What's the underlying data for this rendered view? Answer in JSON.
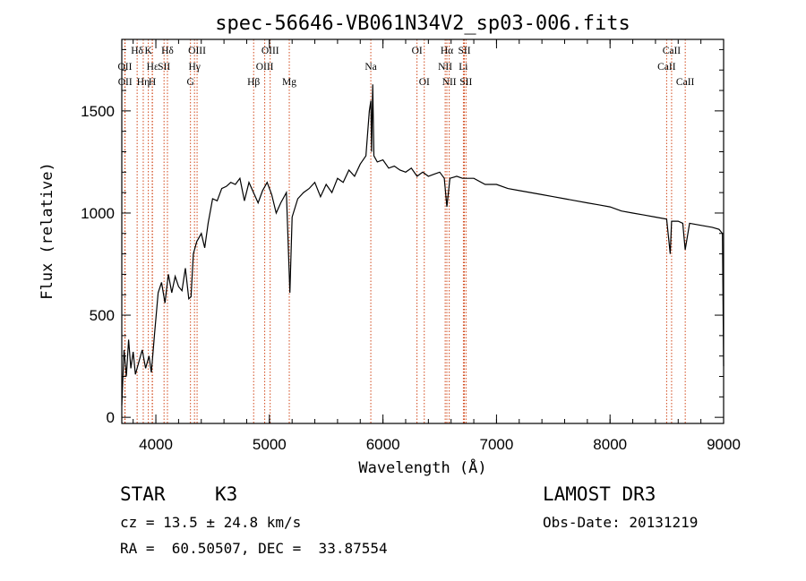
{
  "chart_data": {
    "type": "line",
    "title": "spec-56646-VB061N34V2_sp03-006.fits",
    "xlabel": "Wavelength (Å)",
    "ylabel": "Flux (relative)",
    "xlim": [
      3700,
      9000
    ],
    "ylim": [
      -30,
      1850
    ],
    "xticks": [
      4000,
      5000,
      6000,
      7000,
      8000,
      9000
    ],
    "yticks": [
      0,
      500,
      1000,
      1500
    ],
    "series": [
      {
        "name": "flux",
        "points": [
          [
            3700,
            60
          ],
          [
            3720,
            330
          ],
          [
            3740,
            200
          ],
          [
            3760,
            380
          ],
          [
            3780,
            240
          ],
          [
            3800,
            320
          ],
          [
            3820,
            210
          ],
          [
            3850,
            270
          ],
          [
            3880,
            330
          ],
          [
            3910,
            240
          ],
          [
            3940,
            300
          ],
          [
            3960,
            220
          ],
          [
            3990,
            420
          ],
          [
            4020,
            610
          ],
          [
            4050,
            660
          ],
          [
            4080,
            560
          ],
          [
            4110,
            700
          ],
          [
            4140,
            610
          ],
          [
            4170,
            690
          ],
          [
            4200,
            640
          ],
          [
            4230,
            620
          ],
          [
            4260,
            730
          ],
          [
            4290,
            580
          ],
          [
            4310,
            590
          ],
          [
            4330,
            800
          ],
          [
            4360,
            860
          ],
          [
            4400,
            900
          ],
          [
            4430,
            830
          ],
          [
            4460,
            950
          ],
          [
            4500,
            1070
          ],
          [
            4540,
            1060
          ],
          [
            4580,
            1120
          ],
          [
            4620,
            1130
          ],
          [
            4660,
            1150
          ],
          [
            4700,
            1140
          ],
          [
            4740,
            1170
          ],
          [
            4780,
            1060
          ],
          [
            4820,
            1150
          ],
          [
            4860,
            1100
          ],
          [
            4900,
            1050
          ],
          [
            4940,
            1110
          ],
          [
            4980,
            1150
          ],
          [
            5020,
            1090
          ],
          [
            5060,
            1000
          ],
          [
            5100,
            1050
          ],
          [
            5150,
            1100
          ],
          [
            5180,
            610
          ],
          [
            5200,
            980
          ],
          [
            5250,
            1070
          ],
          [
            5300,
            1100
          ],
          [
            5350,
            1120
          ],
          [
            5400,
            1150
          ],
          [
            5450,
            1080
          ],
          [
            5500,
            1140
          ],
          [
            5550,
            1100
          ],
          [
            5600,
            1170
          ],
          [
            5650,
            1150
          ],
          [
            5700,
            1210
          ],
          [
            5750,
            1180
          ],
          [
            5800,
            1240
          ],
          [
            5850,
            1280
          ],
          [
            5880,
            1500
          ],
          [
            5893,
            1550
          ],
          [
            5900,
            1300
          ],
          [
            5910,
            1630
          ],
          [
            5920,
            1280
          ],
          [
            5950,
            1250
          ],
          [
            6000,
            1260
          ],
          [
            6050,
            1220
          ],
          [
            6100,
            1230
          ],
          [
            6150,
            1210
          ],
          [
            6200,
            1200
          ],
          [
            6250,
            1220
          ],
          [
            6300,
            1180
          ],
          [
            6350,
            1200
          ],
          [
            6400,
            1180
          ],
          [
            6450,
            1190
          ],
          [
            6500,
            1200
          ],
          [
            6540,
            1170
          ],
          [
            6563,
            1030
          ],
          [
            6590,
            1170
          ],
          [
            6650,
            1180
          ],
          [
            6700,
            1170
          ],
          [
            6750,
            1170
          ],
          [
            6800,
            1170
          ],
          [
            6900,
            1140
          ],
          [
            7000,
            1140
          ],
          [
            7100,
            1120
          ],
          [
            7200,
            1110
          ],
          [
            7300,
            1100
          ],
          [
            7400,
            1090
          ],
          [
            7500,
            1080
          ],
          [
            7600,
            1070
          ],
          [
            7700,
            1060
          ],
          [
            7800,
            1050
          ],
          [
            7900,
            1040
          ],
          [
            8000,
            1030
          ],
          [
            8100,
            1010
          ],
          [
            8200,
            1000
          ],
          [
            8300,
            990
          ],
          [
            8400,
            980
          ],
          [
            8498,
            970
          ],
          [
            8530,
            800
          ],
          [
            8542,
            960
          ],
          [
            8600,
            960
          ],
          [
            8640,
            950
          ],
          [
            8662,
            820
          ],
          [
            8700,
            950
          ],
          [
            8800,
            940
          ],
          [
            8900,
            930
          ],
          [
            8960,
            920
          ],
          [
            8990,
            900
          ],
          [
            9000,
            250
          ]
        ]
      }
    ],
    "lines": [
      {
        "name": "Hδ",
        "wl": 3835,
        "row": 0
      },
      {
        "name": "OII",
        "wl": 3727,
        "row": 1
      },
      {
        "name": "OII",
        "wl": 3729,
        "row": 2
      },
      {
        "name": "K",
        "wl": 3934,
        "row": 0
      },
      {
        "name": "Hε",
        "wl": 3970,
        "row": 1
      },
      {
        "name": "Hη",
        "wl": 3889,
        "row": 2
      },
      {
        "name": "H",
        "wl": 3968,
        "row": 2
      },
      {
        "name": "Hδ",
        "wl": 4102,
        "row": 0
      },
      {
        "name": "SII",
        "wl": 4072,
        "row": 1
      },
      {
        "name": "OIII",
        "wl": 4363,
        "row": 0
      },
      {
        "name": "Hγ",
        "wl": 4340,
        "row": 1
      },
      {
        "name": "G",
        "wl": 4305,
        "row": 2
      },
      {
        "name": "Hβ",
        "wl": 4861,
        "row": 2
      },
      {
        "name": "OIII",
        "wl": 5007,
        "row": 0
      },
      {
        "name": "OIII",
        "wl": 4959,
        "row": 1
      },
      {
        "name": "Mg",
        "wl": 5175,
        "row": 2
      },
      {
        "name": "Na",
        "wl": 5893,
        "row": 1
      },
      {
        "name": "OI",
        "wl": 6300,
        "row": 0
      },
      {
        "name": "OI",
        "wl": 6364,
        "row": 2
      },
      {
        "name": "Hα",
        "wl": 6563,
        "row": 0
      },
      {
        "name": "NII",
        "wl": 6548,
        "row": 1
      },
      {
        "name": "NII",
        "wl": 6584,
        "row": 2
      },
      {
        "name": "SII",
        "wl": 6717,
        "row": 0
      },
      {
        "name": "Li",
        "wl": 6708,
        "row": 1
      },
      {
        "name": "SII",
        "wl": 6731,
        "row": 2
      },
      {
        "name": "CaII",
        "wl": 8542,
        "row": 0
      },
      {
        "name": "CaII",
        "wl": 8498,
        "row": 1
      },
      {
        "name": "CaII",
        "wl": 8662,
        "row": 2
      }
    ]
  },
  "info": {
    "object_type": "STAR",
    "subclass": "K3",
    "survey": "LAMOST DR3",
    "cz": "cz = 13.5 ± 24.8 km/s",
    "obs_date": "Obs-Date: 20131219",
    "coords": "RA =  60.50507, DEC =  33.87554"
  },
  "colors": {
    "axis": "#000000",
    "line_marker": "#cc3300",
    "spectrum": "#000000"
  }
}
